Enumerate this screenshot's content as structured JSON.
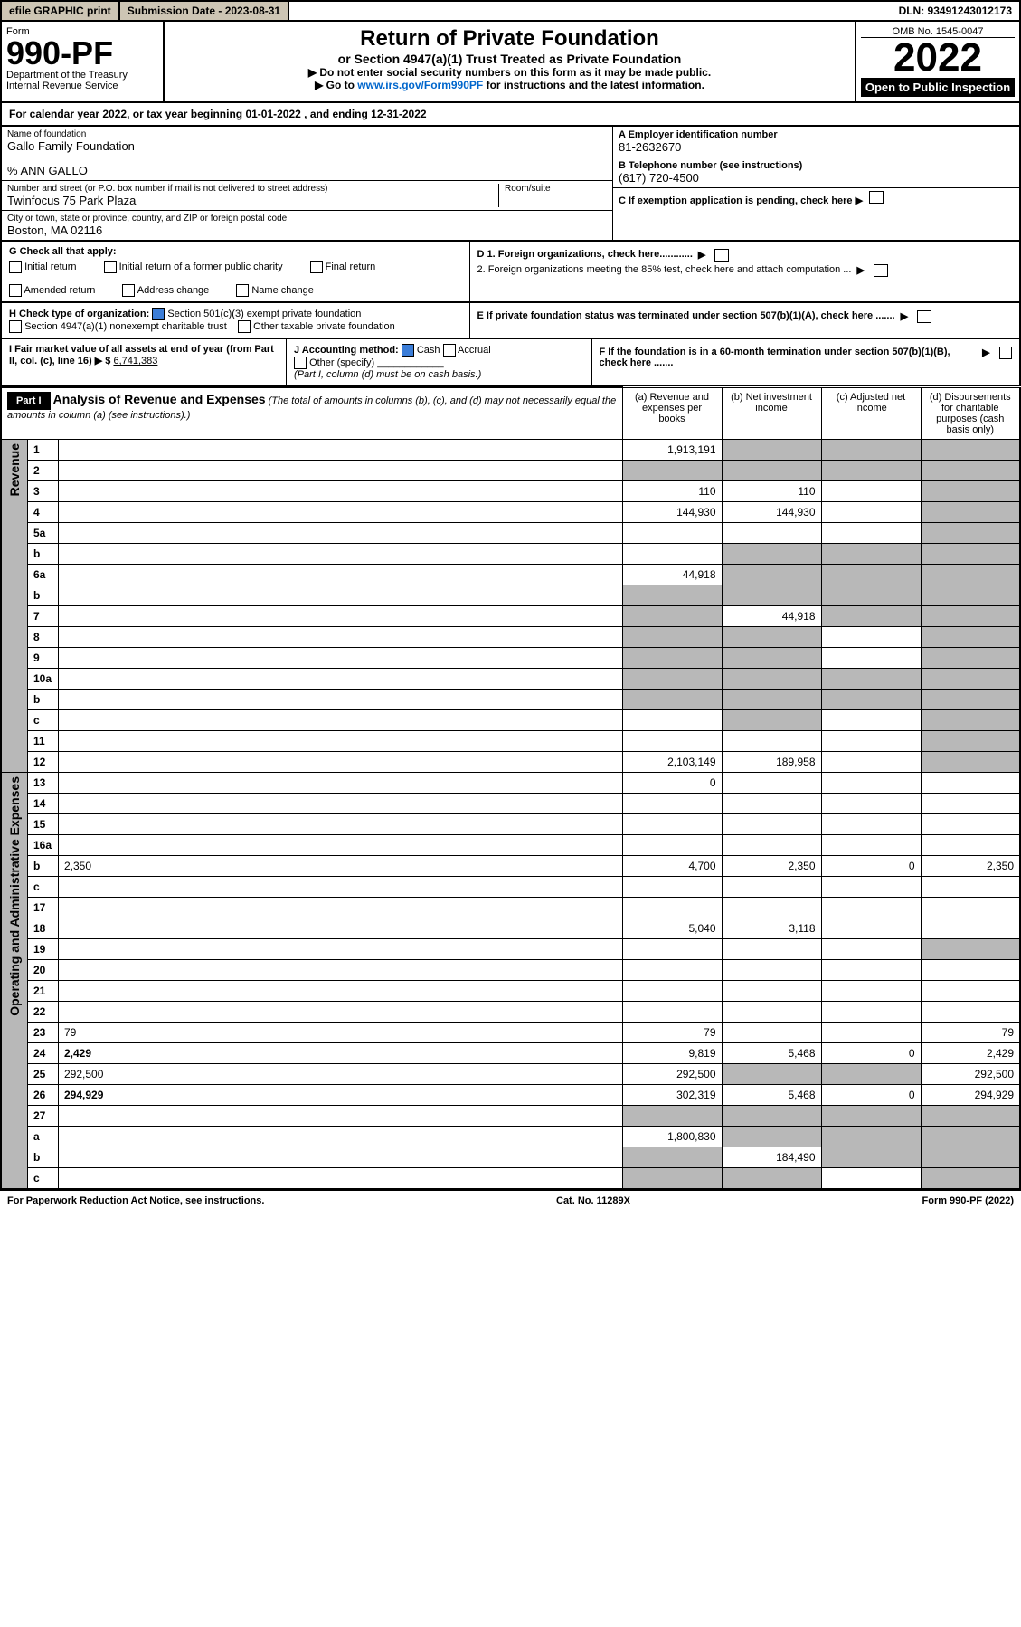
{
  "topbar": {
    "efile": "efile GRAPHIC print",
    "submission": "Submission Date - 2023-08-31",
    "dln": "DLN: 93491243012173"
  },
  "header": {
    "form_word": "Form",
    "form_no": "990-PF",
    "dept": "Department of the Treasury",
    "irs": "Internal Revenue Service",
    "title": "Return of Private Foundation",
    "subtitle": "or Section 4947(a)(1) Trust Treated as Private Foundation",
    "note1": "▶ Do not enter social security numbers on this form as it may be made public.",
    "note2_pre": "▶ Go to ",
    "note2_link": "www.irs.gov/Form990PF",
    "note2_post": " for instructions and the latest information.",
    "omb": "OMB No. 1545-0047",
    "year": "2022",
    "open": "Open to Public Inspection"
  },
  "calyear": "For calendar year 2022, or tax year beginning 01-01-2022          , and ending 12-31-2022",
  "info": {
    "name_label": "Name of foundation",
    "name": "Gallo Family Foundation",
    "care_of": "% ANN GALLO",
    "addr_label": "Number and street (or P.O. box number if mail is not delivered to street address)",
    "addr": "Twinfocus 75 Park Plaza",
    "room_label": "Room/suite",
    "city_label": "City or town, state or province, country, and ZIP or foreign postal code",
    "city": "Boston, MA  02116",
    "a_label": "A Employer identification number",
    "a_val": "81-2632670",
    "b_label": "B Telephone number (see instructions)",
    "b_val": "(617) 720-4500",
    "c_label": "C If exemption application is pending, check here"
  },
  "g": {
    "label": "G Check all that apply:",
    "opts": [
      "Initial return",
      "Initial return of a former public charity",
      "Final return",
      "Amended return",
      "Address change",
      "Name change"
    ]
  },
  "h": {
    "label": "H Check type of organization:",
    "opt1": "Section 501(c)(3) exempt private foundation",
    "opt2": "Section 4947(a)(1) nonexempt charitable trust",
    "opt3": "Other taxable private foundation"
  },
  "d": {
    "d1": "D 1. Foreign organizations, check here............",
    "d2": "2. Foreign organizations meeting the 85% test, check here and attach computation ..."
  },
  "e": "E  If private foundation status was terminated under section 507(b)(1)(A), check here .......",
  "i": {
    "label": "I Fair market value of all assets at end of year (from Part II, col. (c), line 16) ▶ $",
    "val": "6,741,383"
  },
  "j": {
    "label": "J Accounting method:",
    "cash": "Cash",
    "accrual": "Accrual",
    "other": "Other (specify)",
    "note": "(Part I, column (d) must be on cash basis.)"
  },
  "f": "F  If the foundation is in a 60-month termination under section 507(b)(1)(B), check here .......",
  "part1": {
    "label": "Part I",
    "title": "Analysis of Revenue and Expenses",
    "note": "(The total of amounts in columns (b), (c), and (d) may not necessarily equal the amounts in column (a) (see instructions).)",
    "col_a": "(a)   Revenue and expenses per books",
    "col_b": "(b)   Net investment income",
    "col_c": "(c)   Adjusted net income",
    "col_d": "(d)   Disbursements for charitable purposes (cash basis only)"
  },
  "sidelabels": {
    "rev": "Revenue",
    "ops": "Operating and Administrative Expenses"
  },
  "rows": [
    {
      "n": "1",
      "d": "",
      "a": "1,913,191",
      "b": "",
      "c": "",
      "shade_b": true,
      "shade_c": true,
      "shade_d": true
    },
    {
      "n": "2",
      "d": "",
      "a": "",
      "b": "",
      "c": "",
      "shade_a": true,
      "shade_b": true,
      "shade_c": true,
      "shade_d": true,
      "bold_not": true
    },
    {
      "n": "3",
      "d": "",
      "a": "110",
      "b": "110",
      "c": "",
      "shade_d": true
    },
    {
      "n": "4",
      "d": "",
      "a": "144,930",
      "b": "144,930",
      "c": "",
      "shade_d": true
    },
    {
      "n": "5a",
      "d": "",
      "a": "",
      "b": "",
      "c": "",
      "shade_d": true
    },
    {
      "n": "b",
      "d": "",
      "a": "",
      "b": "",
      "c": "",
      "shade_a": false,
      "shade_b": true,
      "shade_c": true,
      "shade_d": true,
      "inline_box": true
    },
    {
      "n": "6a",
      "d": "",
      "a": "44,918",
      "b": "",
      "c": "",
      "shade_b": true,
      "shade_c": true,
      "shade_d": true
    },
    {
      "n": "b",
      "d": "",
      "a": "",
      "b": "",
      "c": "",
      "shade_a": true,
      "shade_b": true,
      "shade_c": true,
      "shade_d": true
    },
    {
      "n": "7",
      "d": "",
      "a": "",
      "b": "44,918",
      "c": "",
      "shade_a": true,
      "shade_c": true,
      "shade_d": true
    },
    {
      "n": "8",
      "d": "",
      "a": "",
      "b": "",
      "c": "",
      "shade_a": true,
      "shade_b": true,
      "shade_d": true
    },
    {
      "n": "9",
      "d": "",
      "a": "",
      "b": "",
      "c": "",
      "shade_a": true,
      "shade_b": true,
      "shade_d": true
    },
    {
      "n": "10a",
      "d": "",
      "a": "",
      "b": "",
      "c": "",
      "shade_a": true,
      "shade_b": true,
      "shade_c": true,
      "shade_d": true,
      "inline_box": true
    },
    {
      "n": "b",
      "d": "",
      "a": "",
      "b": "",
      "c": "",
      "shade_a": true,
      "shade_b": true,
      "shade_c": true,
      "shade_d": true,
      "inline_box": true
    },
    {
      "n": "c",
      "d": "",
      "a": "",
      "b": "",
      "c": "",
      "shade_b": true,
      "shade_d": true
    },
    {
      "n": "11",
      "d": "",
      "a": "",
      "b": "",
      "c": "",
      "shade_d": true
    },
    {
      "n": "12",
      "d": "",
      "a": "2,103,149",
      "b": "189,958",
      "c": "",
      "bold": true,
      "shade_d": true
    },
    {
      "n": "13",
      "d": "",
      "a": "0",
      "b": "",
      "c": ""
    },
    {
      "n": "14",
      "d": "",
      "a": "",
      "b": "",
      "c": ""
    },
    {
      "n": "15",
      "d": "",
      "a": "",
      "b": "",
      "c": ""
    },
    {
      "n": "16a",
      "d": "",
      "a": "",
      "b": "",
      "c": ""
    },
    {
      "n": "b",
      "d": "2,350",
      "a": "4,700",
      "b": "2,350",
      "c": "0"
    },
    {
      "n": "c",
      "d": "",
      "a": "",
      "b": "",
      "c": ""
    },
    {
      "n": "17",
      "d": "",
      "a": "",
      "b": "",
      "c": ""
    },
    {
      "n": "18",
      "d": "",
      "a": "5,040",
      "b": "3,118",
      "c": ""
    },
    {
      "n": "19",
      "d": "",
      "a": "",
      "b": "",
      "c": "",
      "shade_d": true
    },
    {
      "n": "20",
      "d": "",
      "a": "",
      "b": "",
      "c": ""
    },
    {
      "n": "21",
      "d": "",
      "a": "",
      "b": "",
      "c": ""
    },
    {
      "n": "22",
      "d": "",
      "a": "",
      "b": "",
      "c": ""
    },
    {
      "n": "23",
      "d": "79",
      "a": "79",
      "b": "",
      "c": ""
    },
    {
      "n": "24",
      "d": "2,429",
      "a": "9,819",
      "b": "5,468",
      "c": "0",
      "bold": true
    },
    {
      "n": "25",
      "d": "292,500",
      "a": "292,500",
      "b": "",
      "c": "",
      "shade_b": true,
      "shade_c": true
    },
    {
      "n": "26",
      "d": "294,929",
      "a": "302,319",
      "b": "5,468",
      "c": "0",
      "bold": true
    },
    {
      "n": "27",
      "d": "",
      "a": "",
      "b": "",
      "c": "",
      "shade_a": true,
      "shade_b": true,
      "shade_c": true,
      "shade_d": true
    },
    {
      "n": "a",
      "d": "",
      "a": "1,800,830",
      "b": "",
      "c": "",
      "bold": true,
      "shade_b": true,
      "shade_c": true,
      "shade_d": true
    },
    {
      "n": "b",
      "d": "",
      "a": "",
      "b": "184,490",
      "c": "",
      "bold": true,
      "shade_a": true,
      "shade_c": true,
      "shade_d": true
    },
    {
      "n": "c",
      "d": "",
      "a": "",
      "b": "",
      "c": "",
      "bold": true,
      "shade_a": true,
      "shade_b": true,
      "shade_d": true
    }
  ],
  "footer": {
    "left": "For Paperwork Reduction Act Notice, see instructions.",
    "mid": "Cat. No. 11289X",
    "right": "Form 990-PF (2022)"
  }
}
